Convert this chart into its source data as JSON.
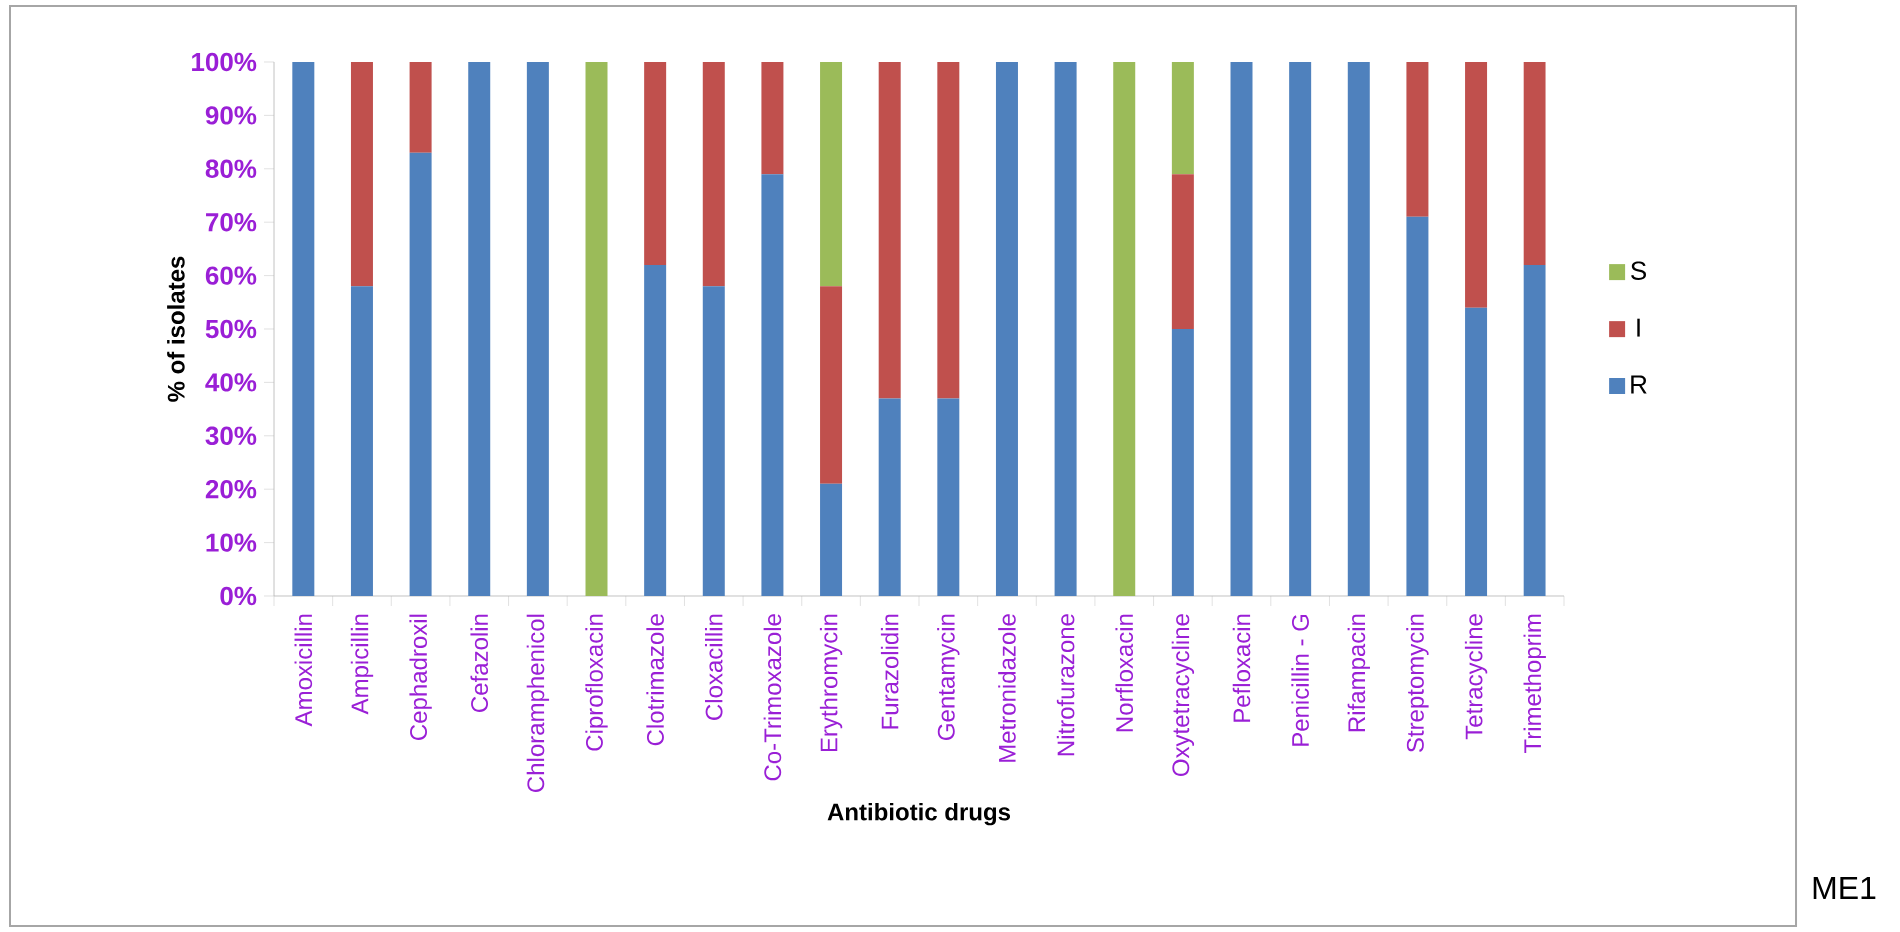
{
  "chart_data": {
    "type": "bar",
    "stacked": true,
    "xlabel": "Antibiotic drugs",
    "ylabel": "% of isolates",
    "categories": [
      "Amoxicillin",
      "Ampicillin",
      "Cephadroxil",
      "Cefazolin",
      "Chloramphenicol",
      "Ciprofloxacin",
      "Clotrimazole",
      "Cloxacillin",
      "Co-Trimoxazole",
      "Erythromycin",
      "Furazolidin",
      "Gentamycin",
      "Metronidazole",
      "Nitrofurazone",
      "Norfloxacin",
      "Oxytetracycline",
      "Pefloxacin",
      "Penicillin - G",
      "Rifampacin",
      "Streptomycin",
      "Tetracycline",
      "Trimethoprim"
    ],
    "series": [
      {
        "name": "R",
        "color": "#4f81bd",
        "values": [
          100,
          58,
          83,
          100,
          100,
          0,
          62,
          58,
          79,
          21,
          37,
          37,
          100,
          100,
          0,
          50,
          100,
          100,
          100,
          71,
          54,
          62
        ]
      },
      {
        "name": "I",
        "color": "#c0504d",
        "values": [
          0,
          42,
          17,
          0,
          0,
          0,
          38,
          42,
          21,
          37,
          63,
          63,
          0,
          0,
          0,
          29,
          0,
          0,
          0,
          29,
          46,
          38
        ]
      },
      {
        "name": "S",
        "color": "#9bbb59",
        "values": [
          0,
          0,
          0,
          0,
          0,
          100,
          0,
          0,
          0,
          42,
          0,
          0,
          0,
          0,
          100,
          21,
          0,
          0,
          0,
          0,
          0,
          0
        ]
      }
    ],
    "ylim": [
      0,
      100
    ],
    "yticks": [
      {
        "value": 0,
        "label": "0%"
      },
      {
        "value": 10,
        "label": "10%"
      },
      {
        "value": 20,
        "label": "20%"
      },
      {
        "value": 30,
        "label": "30%"
      },
      {
        "value": 40,
        "label": "40%"
      },
      {
        "value": 50,
        "label": "50%"
      },
      {
        "value": 60,
        "label": "60%"
      },
      {
        "value": 70,
        "label": "70%"
      },
      {
        "value": 80,
        "label": "80%"
      },
      {
        "value": 90,
        "label": "90%"
      },
      {
        "value": 100,
        "label": "100%"
      }
    ],
    "grid": false,
    "legend": "right",
    "annotations": [
      "ME1"
    ]
  }
}
